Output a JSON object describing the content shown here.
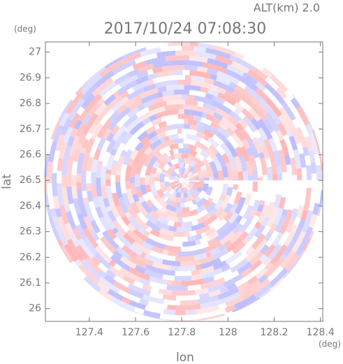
{
  "chart_data": {
    "type": "radar-ppi",
    "title": "2017/10/24 07:08:30",
    "subtitle": "ALT(km) 2.0",
    "x_label": "lon",
    "y_label": "lat",
    "x_unit": "(deg)",
    "y_unit": "(deg)",
    "xlim": [
      127.21,
      128.41
    ],
    "ylim": [
      25.95,
      27.04
    ],
    "xticks": [
      127.4,
      127.6,
      127.8,
      128.0,
      128.2,
      128.4
    ],
    "yticks": [
      26.0,
      26.1,
      26.2,
      26.3,
      26.4,
      26.5,
      26.6,
      26.7,
      26.8,
      26.9,
      27.0
    ],
    "center": [
      127.8,
      26.5
    ]
  }
}
